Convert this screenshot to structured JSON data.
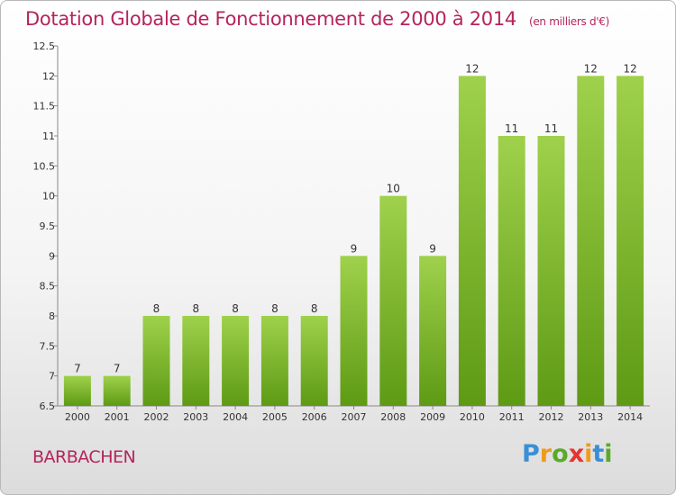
{
  "chart_data": {
    "type": "bar",
    "title": "Dotation Globale de Fonctionnement de 2000 à 2014",
    "subtitle": "(en milliers d'€)",
    "categories": [
      "2000",
      "2001",
      "2002",
      "2003",
      "2004",
      "2005",
      "2006",
      "2007",
      "2008",
      "2009",
      "2010",
      "2011",
      "2012",
      "2013",
      "2014"
    ],
    "values": [
      7,
      7,
      8,
      8,
      8,
      8,
      8,
      9,
      10,
      9,
      12,
      11,
      11,
      12,
      12
    ],
    "ylim": [
      6.5,
      12.5
    ],
    "yticks": [
      "6.5",
      "7",
      "7.5",
      "8",
      "8.5",
      "9",
      "9.5",
      "10",
      "10.5",
      "11",
      "11.5",
      "12",
      "12.5"
    ],
    "grid": false,
    "colors": {
      "bar_top": "#9fd14c",
      "bar_bottom": "#5e9a14",
      "title": "#b5245c"
    }
  },
  "commune": "BARBACHEN",
  "logo": {
    "text": "Proxiti"
  }
}
